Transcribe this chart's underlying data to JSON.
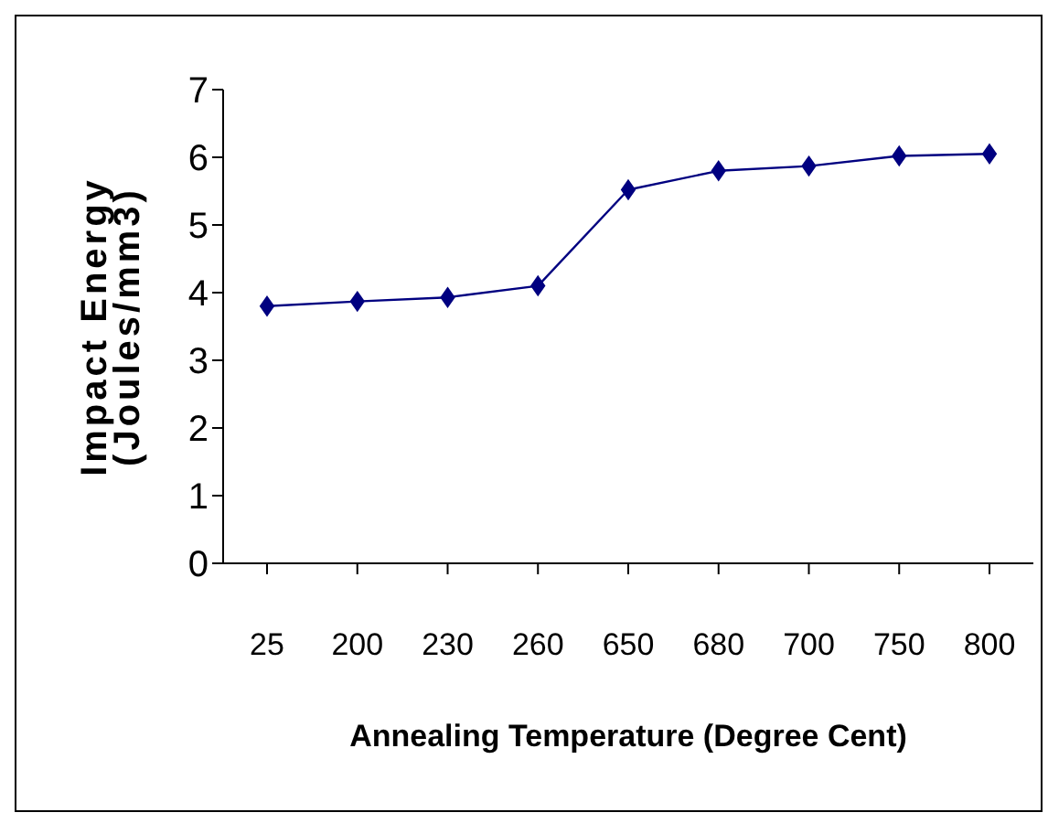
{
  "chart_data": {
    "type": "line",
    "xlabel": "Annealing Temperature (Degree Cent)",
    "ylabel": "Impact Energy (Joules/mm3)",
    "categories": [
      "25",
      "200",
      "230",
      "260",
      "650",
      "680",
      "700",
      "750",
      "800"
    ],
    "series": [
      {
        "color": "#000080",
        "values": [
          3.8,
          3.87,
          3.93,
          4.1,
          5.52,
          5.8,
          5.87,
          6.02,
          6.05
        ]
      }
    ],
    "ylim": [
      0,
      7
    ],
    "yticks": [
      0,
      1,
      2,
      3,
      4,
      5,
      6,
      7
    ],
    "marker": "diamond",
    "line_style": "solid"
  }
}
